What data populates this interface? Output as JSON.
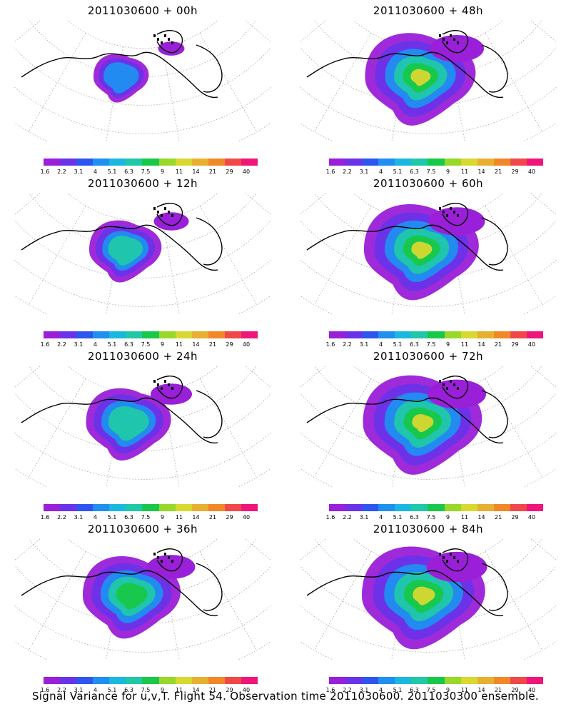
{
  "caption": "Signal Variance for u,v,T. Flight 54. Observation time 2011030600. 2011030300 ensemble.",
  "colorbar": {
    "labels": [
      "1.6",
      "2.2",
      "3.1",
      "4",
      "5.1",
      "6.3",
      "7.5",
      "9",
      "11",
      "14",
      "21",
      "29",
      "40"
    ],
    "colors": [
      "#9a1fd8",
      "#6a33e8",
      "#2f55f0",
      "#1f8ff0",
      "#1ab8e0",
      "#20c8a8",
      "#18c848",
      "#98d828",
      "#d8d830",
      "#e8b030",
      "#f08828",
      "#f04848",
      "#f0157a"
    ]
  },
  "panels": [
    {
      "title": "2011030600 + 00h",
      "spread": 0.35
    },
    {
      "title": "2011030600 + 48h",
      "spread": 1.0
    },
    {
      "title": "2011030600 + 12h",
      "spread": 0.55
    },
    {
      "title": "2011030600 + 60h",
      "spread": 1.05
    },
    {
      "title": "2011030600 + 24h",
      "spread": 0.7
    },
    {
      "title": "2011030600 + 72h",
      "spread": 1.1
    },
    {
      "title": "2011030600 + 36h",
      "spread": 0.85
    },
    {
      "title": "2011030600 + 84h",
      "spread": 1.15
    }
  ]
}
